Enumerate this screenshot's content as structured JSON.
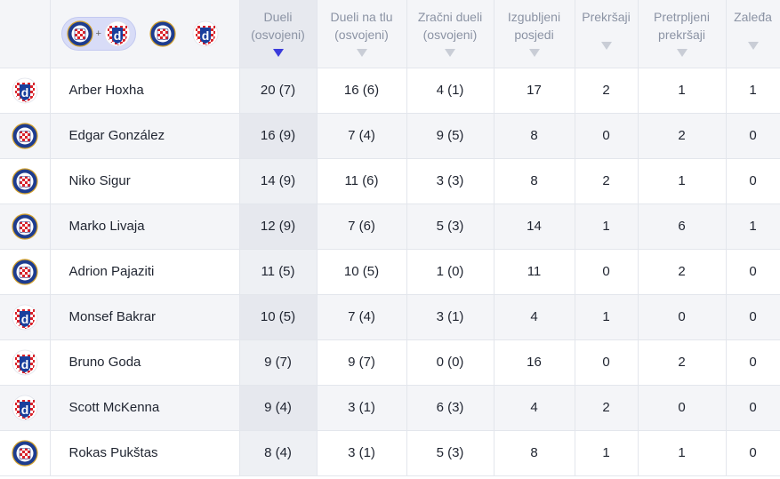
{
  "header": {
    "columns": [
      {
        "line1": "Dueli",
        "line2": "(osvojeni)",
        "sorted": true
      },
      {
        "line1": "Dueli na tlu",
        "line2": "(osvojeni)",
        "sorted": false
      },
      {
        "line1": "Zračni dueli",
        "line2": "(osvojeni)",
        "sorted": false
      },
      {
        "line1": "Izgubljeni",
        "line2": "posjedi",
        "sorted": false
      },
      {
        "line1": "Prekršaji",
        "line2": "",
        "sorted": false
      },
      {
        "line1": "Pretrpljeni",
        "line2": "prekršaji",
        "sorted": false
      },
      {
        "line1": "Zaleđa",
        "line2": "",
        "sorted": false
      }
    ],
    "filter_plus": "+"
  },
  "clubs": {
    "hajduk": {
      "icon": "hajduk-crest-icon",
      "colors": {
        "blue": "#1d3c8f",
        "red": "#d9222a",
        "gold": "#d4a12a"
      }
    },
    "dinamo": {
      "icon": "dinamo-crest-icon",
      "colors": {
        "blue": "#1a3f9c",
        "red": "#d9222a"
      }
    }
  },
  "rows": [
    {
      "club": "dinamo",
      "name": "Arber Hoxha",
      "duels": "20 (7)",
      "ground": "16 (6)",
      "aerial": "4 (1)",
      "lost": "17",
      "fouls": "2",
      "fouled": "1",
      "offsides": "1"
    },
    {
      "club": "hajduk",
      "name": "Edgar González",
      "duels": "16 (9)",
      "ground": "7 (4)",
      "aerial": "9 (5)",
      "lost": "8",
      "fouls": "0",
      "fouled": "2",
      "offsides": "0"
    },
    {
      "club": "hajduk",
      "name": "Niko Sigur",
      "duels": "14 (9)",
      "ground": "11 (6)",
      "aerial": "3 (3)",
      "lost": "8",
      "fouls": "2",
      "fouled": "1",
      "offsides": "0"
    },
    {
      "club": "hajduk",
      "name": "Marko Livaja",
      "duels": "12 (9)",
      "ground": "7 (6)",
      "aerial": "5 (3)",
      "lost": "14",
      "fouls": "1",
      "fouled": "6",
      "offsides": "1"
    },
    {
      "club": "hajduk",
      "name": "Adrion Pajaziti",
      "duels": "11 (5)",
      "ground": "10 (5)",
      "aerial": "1 (0)",
      "lost": "11",
      "fouls": "0",
      "fouled": "2",
      "offsides": "0"
    },
    {
      "club": "dinamo",
      "name": "Monsef Bakrar",
      "duels": "10 (5)",
      "ground": "7 (4)",
      "aerial": "3 (1)",
      "lost": "4",
      "fouls": "1",
      "fouled": "0",
      "offsides": "0"
    },
    {
      "club": "dinamo",
      "name": "Bruno Goda",
      "duels": "9 (7)",
      "ground": "9 (7)",
      "aerial": "0 (0)",
      "lost": "16",
      "fouls": "0",
      "fouled": "2",
      "offsides": "0"
    },
    {
      "club": "dinamo",
      "name": "Scott McKenna",
      "duels": "9 (4)",
      "ground": "3 (1)",
      "aerial": "6 (3)",
      "lost": "4",
      "fouls": "2",
      "fouled": "0",
      "offsides": "0"
    },
    {
      "club": "hajduk",
      "name": "Rokas Pukštas",
      "duels": "8 (4)",
      "ground": "3 (1)",
      "aerial": "5 (3)",
      "lost": "8",
      "fouls": "1",
      "fouled": "1",
      "offsides": "0"
    }
  ]
}
